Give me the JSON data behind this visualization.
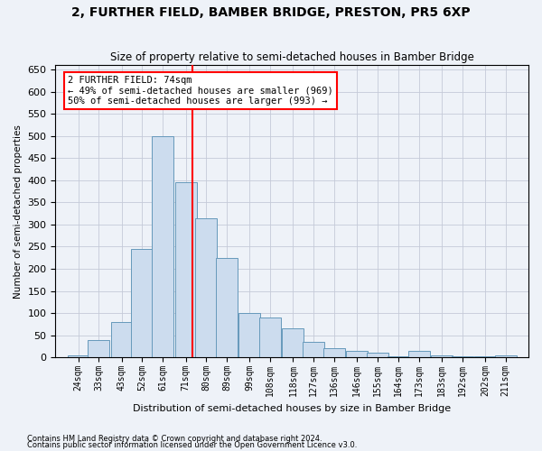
{
  "title": "2, FURTHER FIELD, BAMBER BRIDGE, PRESTON, PR5 6XP",
  "subtitle": "Size of property relative to semi-detached houses in Bamber Bridge",
  "xlabel": "Distribution of semi-detached houses by size in Bamber Bridge",
  "ylabel": "Number of semi-detached properties",
  "bar_color": "#ccdcee",
  "bar_edge_color": "#6699bb",
  "background_color": "#eef2f8",
  "grid_color": "#c5cad8",
  "annotation_text": "2 FURTHER FIELD: 74sqm\n← 49% of semi-detached houses are smaller (969)\n50% of semi-detached houses are larger (993) →",
  "annotation_box_color": "white",
  "annotation_box_edge": "red",
  "vline_x": 74,
  "vline_color": "red",
  "categories": [
    "24sqm",
    "33sqm",
    "43sqm",
    "52sqm",
    "61sqm",
    "71sqm",
    "80sqm",
    "89sqm",
    "99sqm",
    "108sqm",
    "118sqm",
    "127sqm",
    "136sqm",
    "146sqm",
    "155sqm",
    "164sqm",
    "173sqm",
    "183sqm",
    "192sqm",
    "202sqm",
    "211sqm"
  ],
  "bin_centers": [
    24,
    33,
    43,
    52,
    61,
    71,
    80,
    89,
    99,
    108,
    118,
    127,
    136,
    146,
    155,
    164,
    173,
    183,
    192,
    202,
    211
  ],
  "values": [
    5,
    40,
    80,
    245,
    500,
    395,
    315,
    225,
    100,
    90,
    65,
    35,
    20,
    15,
    10,
    3,
    15,
    5,
    3,
    3,
    5
  ],
  "ylim": [
    0,
    660
  ],
  "yticks": [
    0,
    50,
    100,
    150,
    200,
    250,
    300,
    350,
    400,
    450,
    500,
    550,
    600,
    650
  ],
  "footnote1": "Contains HM Land Registry data © Crown copyright and database right 2024.",
  "footnote2": "Contains public sector information licensed under the Open Government Licence v3.0."
}
